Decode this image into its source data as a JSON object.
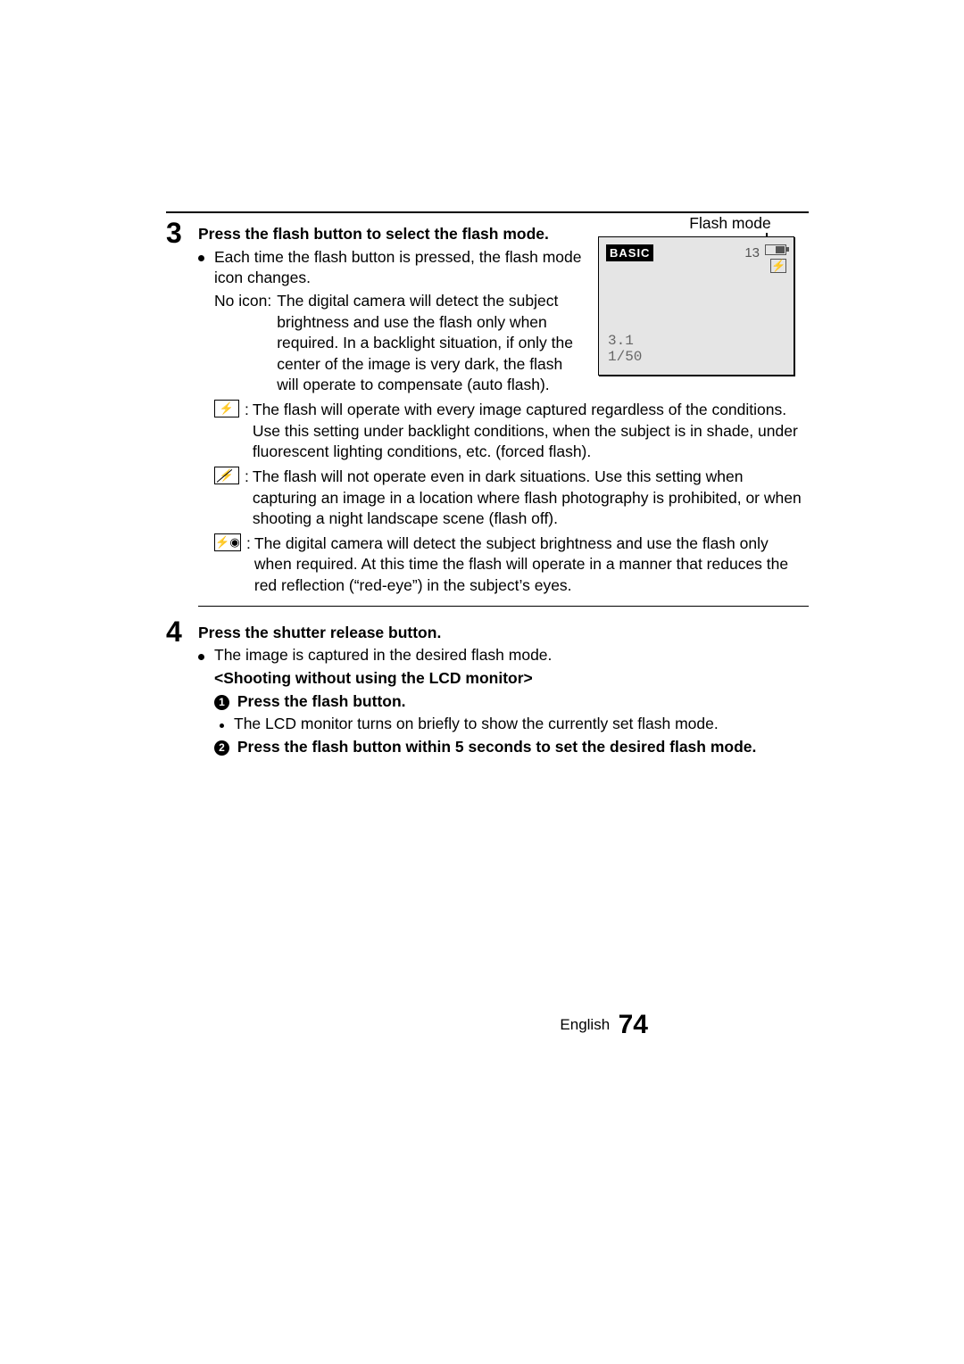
{
  "page": {
    "language": "English",
    "number": "74"
  },
  "step3": {
    "number": "3",
    "title": "Press the flash button to select the flash mode.",
    "intro": "Each time the flash button is pressed, the flash mode icon changes.",
    "noicon_label": "No icon:",
    "noicon_text": "The digital camera will detect the subject brightness and use the flash only when required. In a backlight situation, if only the center of the image is very dark, the flash will operate to compensate (auto flash).",
    "forced": "The flash will operate with every image captured regardless of the conditions. Use this setting under backlight conditions, when the subject is in shade, under fluorescent lighting conditions, etc. (forced flash).",
    "off": "The flash will not operate even in dark situations. Use this setting when capturing an image in a location where flash photography is prohibited, or when shooting a night landscape scene (flash off).",
    "redeye": "The digital camera will detect the subject brightness and use the flash only when required. At this time the flash will operate in a manner that reduces the red reflection (“red-eye”) in the subject’s eyes."
  },
  "lcd": {
    "caption": "Flash mode",
    "basic_badge": "BASIC",
    "shots": "13",
    "flash_glyph": "⚡",
    "aperture": "3.1",
    "shutter": "1/50"
  },
  "step4": {
    "number": "4",
    "title": "Press the shutter release button.",
    "line1": "The image is captured in the desired flash mode.",
    "subhead": "<Shooting without using the LCD monitor>",
    "s1_num": "1",
    "s1_title": "Press the flash button.",
    "s1_body": "The LCD monitor turns on briefly to show the currently set flash mode.",
    "s2_num": "2",
    "s2_title": "Press the flash button within 5 seconds to set the desired flash mode."
  },
  "colors": {
    "text": "#000000",
    "background": "#ffffff",
    "lcd_bg": "#e5e5e5",
    "lcd_readout": "#666666"
  },
  "typography": {
    "body_fontsize_pt": 13,
    "stepnum_fontsize_pt": 24,
    "pagenum_fontsize_pt": 22,
    "font_family": "Arial/Helvetica"
  }
}
